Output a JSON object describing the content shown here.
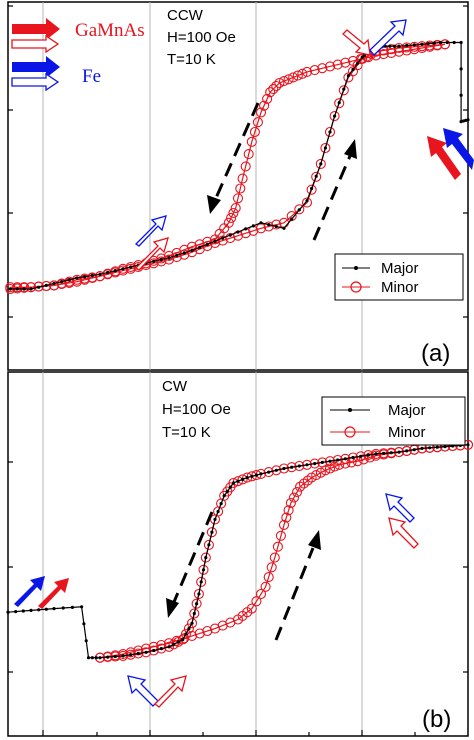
{
  "chart_data": [
    {
      "panel": "(a)",
      "type": "line",
      "annotation_lines": [
        "CCW",
        "H=100 Oe",
        "T=10 K"
      ],
      "material_legend": [
        {
          "name": "GaMnAs",
          "color": "#e8141e"
        },
        {
          "name": "Fe",
          "color": "#0a16e6"
        }
      ],
      "legend": [
        "Major",
        "Minor"
      ],
      "legend_position": "right",
      "grid": "vertical",
      "xlim": [
        0,
        10
      ],
      "ylim": [
        0,
        10
      ],
      "series": [
        {
          "name": "Major",
          "color": "#000000",
          "x": [
            0.05,
            0.5,
            1.0,
            1.5,
            2.0,
            2.5,
            3.0,
            3.5,
            4.0,
            4.5,
            5.0,
            5.5,
            6.0,
            6.5,
            6.8,
            7.1,
            7.4,
            7.7,
            7.85,
            8.0,
            8.2,
            8.5,
            9.0,
            9.4,
            9.85,
            9.85,
            10.0
          ],
          "y": [
            2.2,
            2.2,
            2.35,
            2.5,
            2.6,
            2.75,
            2.9,
            3.05,
            3.25,
            3.5,
            3.75,
            4.0,
            3.85,
            4.6,
            5.6,
            6.9,
            8.0,
            8.5,
            8.65,
            8.75,
            8.8,
            8.8,
            8.85,
            8.9,
            8.9,
            6.75,
            6.8
          ]
        },
        {
          "name": "Minor",
          "color": "#e8141e",
          "forward": {
            "x": [
              0.05,
              0.5,
              1.0,
              1.5,
              2.0,
              2.5,
              3.0,
              3.5,
              4.0,
              4.5,
              5.0,
              5.5,
              6.0,
              6.5,
              6.8,
              7.1,
              7.4,
              7.7,
              8.0,
              8.5,
              9.0,
              9.5
            ],
            "y": [
              2.25,
              2.25,
              2.3,
              2.4,
              2.55,
              2.7,
              2.85,
              3.0,
              3.2,
              3.45,
              3.65,
              3.85,
              4.0,
              4.55,
              5.6,
              6.9,
              7.95,
              8.45,
              8.65,
              8.75,
              8.8,
              8.85
            ]
          },
          "reverse": {
            "x": [
              9.5,
              9.0,
              8.5,
              8.0,
              7.5,
              7.0,
              6.5,
              6.2,
              5.9,
              5.7,
              5.5,
              5.3,
              5.1,
              4.95,
              4.8,
              4.5,
              4.0,
              3.5,
              3.0,
              2.5,
              2.0,
              1.5,
              1.0,
              0.5,
              0.05
            ],
            "y": [
              8.85,
              8.75,
              8.65,
              8.55,
              8.4,
              8.25,
              8.1,
              7.95,
              7.8,
              7.55,
              7.0,
              6.2,
              5.2,
              4.4,
              4.0,
              3.55,
              3.35,
              3.1,
              2.9,
              2.75,
              2.55,
              2.45,
              2.3,
              2.25,
              2.2
            ]
          }
        }
      ]
    },
    {
      "panel": "(b)",
      "type": "line",
      "annotation_lines": [
        "CW",
        "H=100 Oe",
        "T=10 K"
      ],
      "legend": [
        "Major",
        "Minor"
      ],
      "legend_position": "top-right",
      "grid": "vertical",
      "xlim": [
        0,
        10
      ],
      "ylim": [
        0,
        10
      ],
      "series": [
        {
          "name": "Major",
          "color": "#000000",
          "x": [
            0.0,
            0.5,
            1.0,
            1.6,
            1.75,
            2.0,
            2.5,
            3.0,
            3.5,
            3.8,
            4.0,
            4.15,
            4.3,
            4.5,
            4.7,
            4.9,
            5.2,
            5.5,
            6.0,
            6.5,
            7.0,
            7.5,
            8.0,
            8.5,
            9.0,
            9.5,
            10.0
          ],
          "y": [
            3.4,
            3.45,
            3.5,
            3.55,
            2.15,
            2.15,
            2.2,
            2.3,
            2.45,
            2.65,
            3.1,
            3.9,
            4.9,
            5.95,
            6.6,
            6.95,
            7.1,
            7.2,
            7.35,
            7.45,
            7.55,
            7.65,
            7.75,
            7.8,
            7.9,
            7.95,
            8.0
          ]
        },
        {
          "name": "Minor",
          "color": "#e8141e",
          "reverse": {
            "x": [
              10.0,
              9.5,
              9.0,
              8.5,
              8.0,
              7.5,
              7.0,
              6.5,
              6.0,
              5.5,
              5.2,
              4.9,
              4.7,
              4.5,
              4.3,
              4.15,
              4.0,
              3.8,
              3.5,
              3.0,
              2.5,
              2.0
            ],
            "y": [
              8.0,
              7.95,
              7.9,
              7.8,
              7.75,
              7.65,
              7.55,
              7.45,
              7.35,
              7.2,
              7.1,
              6.95,
              6.6,
              5.95,
              4.9,
              3.9,
              3.1,
              2.65,
              2.45,
              2.3,
              2.2,
              2.15
            ]
          },
          "forward": {
            "x": [
              2.0,
              2.5,
              3.0,
              3.5,
              4.0,
              4.5,
              5.0,
              5.3,
              5.6,
              5.8,
              6.0,
              6.15,
              6.35,
              6.6,
              6.9,
              7.2,
              7.6,
              8.0,
              8.5,
              9.0,
              9.5,
              10.0
            ],
            "y": [
              2.15,
              2.25,
              2.4,
              2.55,
              2.75,
              2.95,
              3.2,
              3.5,
              4.1,
              4.9,
              5.8,
              6.4,
              6.85,
              7.1,
              7.3,
              7.45,
              7.55,
              7.7,
              7.8,
              7.9,
              7.95,
              8.0
            ]
          }
        }
      ]
    }
  ],
  "colors": {
    "major": "#000000",
    "minor": "#e8141e",
    "gamnas": "#e8141e",
    "fe": "#0a16e6",
    "grid": "#b4b4b4"
  }
}
